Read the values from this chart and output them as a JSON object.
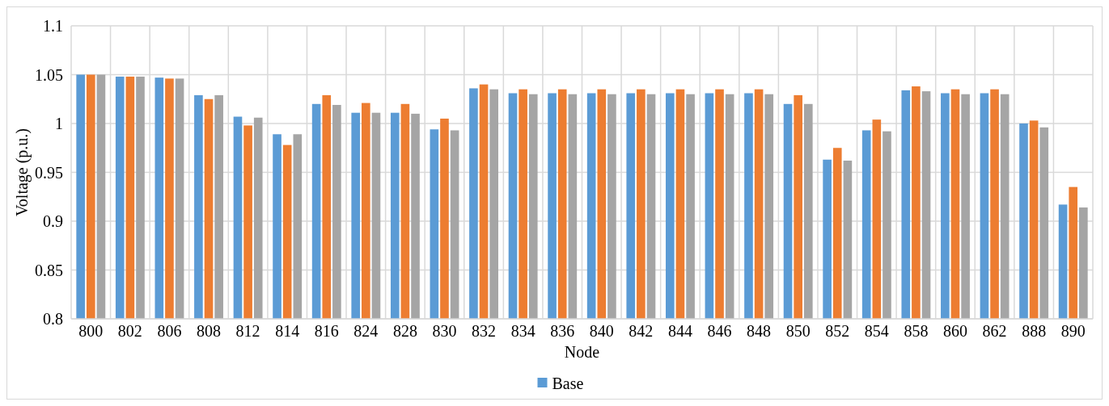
{
  "chart_data": {
    "type": "bar",
    "xlabel": "Node",
    "ylabel": "Voltage (p.u.)",
    "categories": [
      "800",
      "802",
      "806",
      "808",
      "812",
      "814",
      "816",
      "824",
      "828",
      "830",
      "832",
      "834",
      "836",
      "840",
      "842",
      "844",
      "846",
      "848",
      "850",
      "852",
      "854",
      "858",
      "860",
      "862",
      "888",
      "890"
    ],
    "series": [
      {
        "name": "Base",
        "color": "#5b9bd5",
        "values": [
          1.05,
          1.048,
          1.047,
          1.029,
          1.007,
          0.989,
          1.02,
          1.011,
          1.011,
          0.994,
          1.036,
          1.031,
          1.031,
          1.031,
          1.031,
          1.031,
          1.031,
          1.031,
          1.02,
          0.963,
          0.993,
          1.034,
          1.031,
          1.031,
          1.0,
          0.917
        ]
      },
      {
        "color": "#ed7d31",
        "values": [
          1.05,
          1.048,
          1.046,
          1.025,
          0.998,
          0.978,
          1.029,
          1.021,
          1.02,
          1.005,
          1.04,
          1.035,
          1.035,
          1.035,
          1.035,
          1.035,
          1.035,
          1.035,
          1.029,
          0.975,
          1.004,
          1.038,
          1.035,
          1.035,
          1.003,
          0.935
        ]
      },
      {
        "color": "#a5a5a5",
        "values": [
          1.05,
          1.048,
          1.046,
          1.029,
          1.006,
          0.989,
          1.019,
          1.011,
          1.01,
          0.993,
          1.035,
          1.03,
          1.03,
          1.03,
          1.03,
          1.03,
          1.03,
          1.03,
          1.02,
          0.962,
          0.992,
          1.033,
          1.03,
          1.03,
          0.996,
          0.914
        ]
      }
    ],
    "ylim": [
      0.8,
      1.1
    ],
    "yticks": [
      0.8,
      0.85,
      0.9,
      0.95,
      1,
      1.05,
      1.1
    ],
    "grid": true,
    "legend": "bottom"
  }
}
